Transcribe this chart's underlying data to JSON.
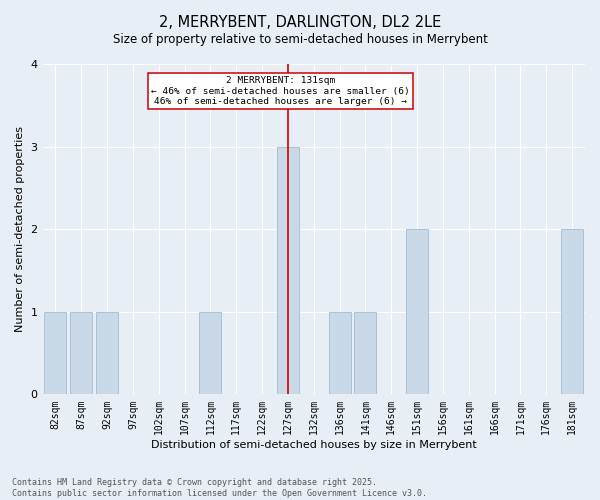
{
  "title": "2, MERRYBENT, DARLINGTON, DL2 2LE",
  "subtitle": "Size of property relative to semi-detached houses in Merrybent",
  "xlabel": "Distribution of semi-detached houses by size in Merrybent",
  "ylabel": "Number of semi-detached properties",
  "categories": [
    "82sqm",
    "87sqm",
    "92sqm",
    "97sqm",
    "102sqm",
    "107sqm",
    "112sqm",
    "117sqm",
    "122sqm",
    "127sqm",
    "132sqm",
    "136sqm",
    "141sqm",
    "146sqm",
    "151sqm",
    "156sqm",
    "161sqm",
    "166sqm",
    "171sqm",
    "176sqm",
    "181sqm"
  ],
  "values": [
    1,
    1,
    1,
    0,
    0,
    0,
    1,
    0,
    0,
    3,
    0,
    1,
    1,
    0,
    2,
    0,
    0,
    0,
    0,
    0,
    2
  ],
  "bar_color": "#c9d9e8",
  "bar_edge_color": "#a0bcd4",
  "highlight_index": 9,
  "highlight_line_color": "#cc0000",
  "annotation_text": "2 MERRYBENT: 131sqm\n← 46% of semi-detached houses are smaller (6)\n46% of semi-detached houses are larger (6) →",
  "annotation_box_color": "#ffffff",
  "annotation_edge_color": "#cc0000",
  "ylim": [
    0,
    4
  ],
  "yticks": [
    0,
    1,
    2,
    3,
    4
  ],
  "footnote": "Contains HM Land Registry data © Crown copyright and database right 2025.\nContains public sector information licensed under the Open Government Licence v3.0.",
  "background_color": "#e8eef5",
  "plot_background_color": "#e8eef5",
  "title_fontsize": 10.5,
  "subtitle_fontsize": 8.5,
  "label_fontsize": 8,
  "tick_fontsize": 7,
  "footnote_fontsize": 6,
  "grid_color": "#ffffff",
  "spine_color": "#cccccc"
}
